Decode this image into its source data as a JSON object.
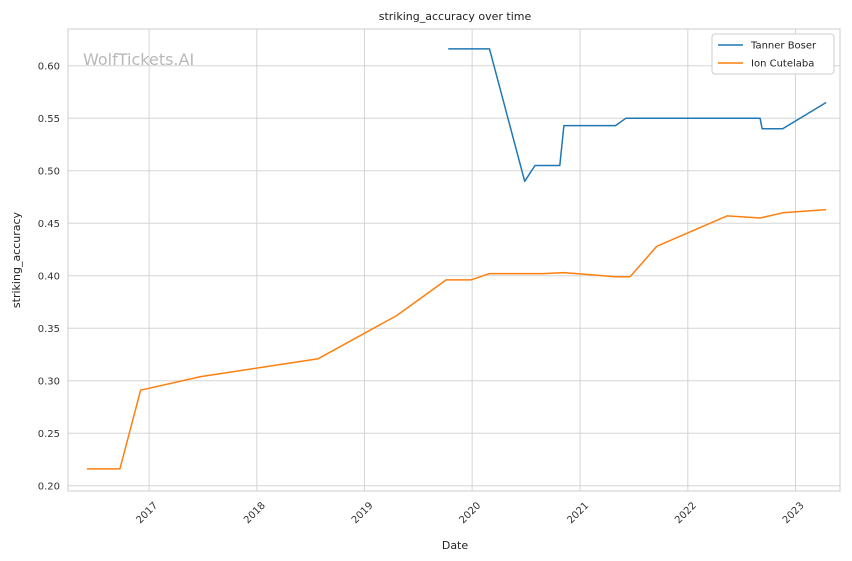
{
  "chart_data": {
    "type": "line",
    "title": "striking_accuracy over time",
    "xlabel": "Date",
    "ylabel": "striking_accuracy",
    "watermark": "WolfTickets.AI",
    "xlim": [
      "2016-04-01",
      "2023-06-01"
    ],
    "ylim": [
      0.195,
      0.635
    ],
    "x_ticks": [
      {
        "date": "2017-01-01",
        "label": "2017"
      },
      {
        "date": "2018-01-01",
        "label": "2018"
      },
      {
        "date": "2019-01-01",
        "label": "2019"
      },
      {
        "date": "2020-01-01",
        "label": "2020"
      },
      {
        "date": "2021-01-01",
        "label": "2021"
      },
      {
        "date": "2022-01-01",
        "label": "2022"
      },
      {
        "date": "2023-01-01",
        "label": "2023"
      }
    ],
    "y_ticks": [
      {
        "value": 0.2,
        "label": "0.20"
      },
      {
        "value": 0.25,
        "label": "0.25"
      },
      {
        "value": 0.3,
        "label": "0.30"
      },
      {
        "value": 0.35,
        "label": "0.35"
      },
      {
        "value": 0.4,
        "label": "0.40"
      },
      {
        "value": 0.45,
        "label": "0.45"
      },
      {
        "value": 0.5,
        "label": "0.50"
      },
      {
        "value": 0.55,
        "label": "0.55"
      },
      {
        "value": 0.6,
        "label": "0.60"
      }
    ],
    "grid": true,
    "legend_position": "top-right",
    "series": [
      {
        "name": "Tanner Boser",
        "color": "#1f77b4",
        "points": [
          {
            "x": "2019-10-12",
            "y": 0.616
          },
          {
            "x": "2020-02-29",
            "y": 0.616
          },
          {
            "x": "2020-06-27",
            "y": 0.49
          },
          {
            "x": "2020-08-01",
            "y": 0.505
          },
          {
            "x": "2020-10-24",
            "y": 0.505
          },
          {
            "x": "2020-11-07",
            "y": 0.543
          },
          {
            "x": "2021-05-01",
            "y": 0.543
          },
          {
            "x": "2021-06-05",
            "y": 0.55
          },
          {
            "x": "2022-09-03",
            "y": 0.55
          },
          {
            "x": "2022-09-10",
            "y": 0.54
          },
          {
            "x": "2022-11-19",
            "y": 0.54
          },
          {
            "x": "2023-04-15",
            "y": 0.565
          }
        ]
      },
      {
        "name": "Ion Cutelaba",
        "color": "#ff7f0e",
        "points": [
          {
            "x": "2016-06-04",
            "y": 0.216
          },
          {
            "x": "2016-09-24",
            "y": 0.216
          },
          {
            "x": "2016-12-03",
            "y": 0.291
          },
          {
            "x": "2017-06-25",
            "y": 0.304
          },
          {
            "x": "2018-07-28",
            "y": 0.321
          },
          {
            "x": "2019-04-20",
            "y": 0.362
          },
          {
            "x": "2019-10-05",
            "y": 0.396
          },
          {
            "x": "2019-12-28",
            "y": 0.396
          },
          {
            "x": "2020-02-29",
            "y": 0.402
          },
          {
            "x": "2020-08-29",
            "y": 0.402
          },
          {
            "x": "2020-11-07",
            "y": 0.403
          },
          {
            "x": "2021-05-01",
            "y": 0.399
          },
          {
            "x": "2021-06-19",
            "y": 0.399
          },
          {
            "x": "2021-09-18",
            "y": 0.428
          },
          {
            "x": "2022-05-14",
            "y": 0.457
          },
          {
            "x": "2022-09-03",
            "y": 0.455
          },
          {
            "x": "2022-11-19",
            "y": 0.46
          },
          {
            "x": "2023-04-15",
            "y": 0.463
          }
        ]
      }
    ]
  }
}
